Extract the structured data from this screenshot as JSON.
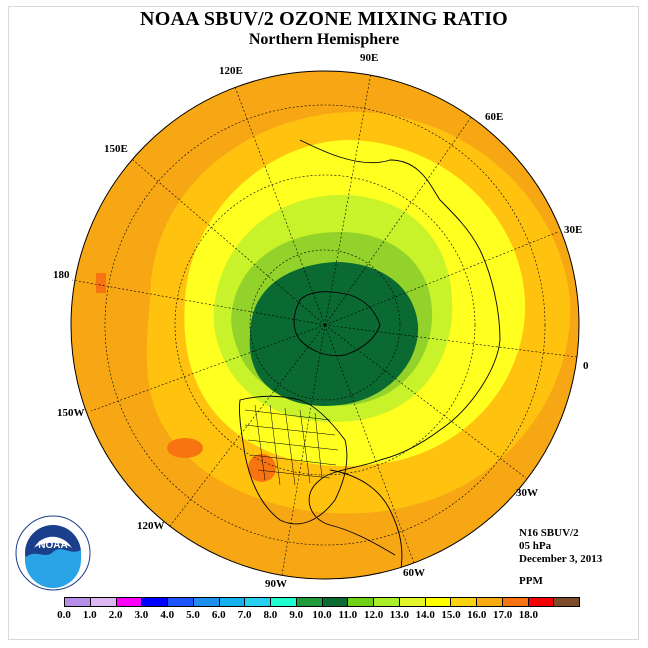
{
  "title": "NOAA SBUV/2 OZONE MIXING RATIO",
  "subtitle": "Northern Hemisphere",
  "longitude_labels": [
    "90E",
    "60E",
    "30E",
    "0",
    "30W",
    "60W",
    "90W",
    "120W",
    "150W",
    "180",
    "150E",
    "120E"
  ],
  "info": {
    "instrument": "N16 SBUV/2",
    "pressure": "05 hPa",
    "date": "December 3, 2013",
    "units": "PPM"
  },
  "logo_text": "NOAA",
  "logo_ring_text": "NATIONAL OCEANIC AND ATMOSPHERIC ADMINISTRATION · U.S. DEPARTMENT OF COMMERCE",
  "colorbar": {
    "ticks": [
      "0.0",
      "1.0",
      "2.0",
      "3.0",
      "4.0",
      "5.0",
      "6.0",
      "7.0",
      "8.0",
      "9.0",
      "10.0",
      "11.0",
      "12.0",
      "13.0",
      "14.0",
      "15.0",
      "16.0",
      "17.0",
      "18.0"
    ],
    "colors": [
      "#b78ee6",
      "#deb6f3",
      "#ff00ff",
      "#0000ff",
      "#1d56ff",
      "#1e8eef",
      "#14b0f0",
      "#26d0ee",
      "#1fffd0",
      "#1f9a3a",
      "#0b6932",
      "#6fd016",
      "#a9ee2a",
      "#e4f62a",
      "#ffff00",
      "#fbd210",
      "#f8ab10",
      "#f87312",
      "#f50005",
      "#7b4b2a"
    ]
  },
  "colors": {
    "outer_ocean": "#f7a614",
    "mid_ring": "#ffc20e",
    "yellow": "#ffff20",
    "light_green": "#c8f229",
    "green": "#92d22a",
    "dark_green": "#0a6a32",
    "hotspot": "#f87312"
  }
}
